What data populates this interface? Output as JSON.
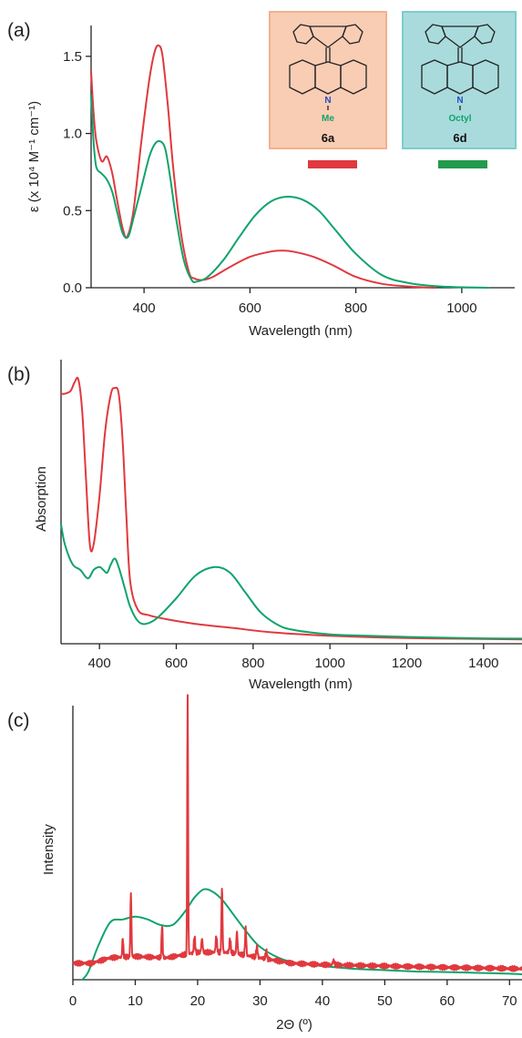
{
  "colors": {
    "red": "#e0393e",
    "green": "#0fa36b",
    "axis": "#222222",
    "box_a_fill": "#f8cdb4",
    "box_a_border": "#f4b08c",
    "box_d_fill": "#a9dbdc",
    "box_d_border": "#7ccccd",
    "bar_red": "#e0393e",
    "bar_green": "#239a4e"
  },
  "chart_data": [
    {
      "panel": "(a)",
      "type": "line",
      "xlabel": "Wavelength (nm)",
      "ylabel": "ε (x 10⁴ M⁻¹ cm⁻¹)",
      "xlim": [
        300,
        1100
      ],
      "ylim": [
        0,
        1.7
      ],
      "xticks": [
        400,
        600,
        800,
        1000
      ],
      "xtick_labels": [
        "400",
        "600",
        "800",
        "1000"
      ],
      "yticks": [
        0,
        0.5,
        1.0,
        1.5
      ],
      "ytick_labels": [
        "0.0",
        "0.5",
        "1.0",
        "1.5"
      ],
      "insets": [
        {
          "label": "6a",
          "substituent": "Me",
          "substituent_color": "#0fa36b",
          "n_label": "N",
          "bar_color": "red"
        },
        {
          "label": "6d",
          "substituent": "Octyl",
          "substituent_color": "#0fa36b",
          "n_label": "N",
          "bar_color": "green"
        }
      ],
      "series": [
        {
          "name": "6a",
          "color": "red",
          "x": [
            300,
            305,
            310,
            320,
            330,
            340,
            350,
            360,
            368,
            380,
            395,
            410,
            420,
            428,
            435,
            445,
            455,
            470,
            485,
            495,
            510,
            530,
            560,
            600,
            640,
            660,
            680,
            720,
            760,
            800,
            850,
            900,
            950
          ],
          "y": [
            1.4,
            1.12,
            0.95,
            0.82,
            0.85,
            0.74,
            0.55,
            0.38,
            0.33,
            0.5,
            0.95,
            1.35,
            1.53,
            1.57,
            1.5,
            1.18,
            0.78,
            0.35,
            0.1,
            0.06,
            0.05,
            0.07,
            0.13,
            0.2,
            0.235,
            0.24,
            0.235,
            0.2,
            0.14,
            0.07,
            0.025,
            0.008,
            0.0
          ]
        },
        {
          "name": "6d",
          "color": "green",
          "x": [
            300,
            305,
            310,
            320,
            330,
            340,
            350,
            360,
            370,
            380,
            395,
            410,
            420,
            430,
            440,
            450,
            460,
            475,
            490,
            500,
            520,
            550,
            580,
            610,
            640,
            670,
            700,
            730,
            760,
            800,
            850,
            900,
            950,
            1000,
            1050
          ],
          "y": [
            1.25,
            0.93,
            0.78,
            0.74,
            0.7,
            0.62,
            0.48,
            0.35,
            0.33,
            0.45,
            0.65,
            0.85,
            0.93,
            0.95,
            0.9,
            0.7,
            0.46,
            0.18,
            0.05,
            0.04,
            0.07,
            0.18,
            0.33,
            0.47,
            0.56,
            0.59,
            0.57,
            0.5,
            0.38,
            0.22,
            0.08,
            0.03,
            0.01,
            0.003,
            0.0
          ]
        }
      ]
    },
    {
      "panel": "(b)",
      "type": "line",
      "xlabel": "Wavelength (nm)",
      "ylabel": "Absorption",
      "xlim": [
        300,
        1500
      ],
      "ylim": [
        0,
        1.0
      ],
      "xticks": [
        400,
        600,
        800,
        1000,
        1200,
        1400
      ],
      "xtick_labels": [
        "400",
        "600",
        "800",
        "1000",
        "1200",
        "1400"
      ],
      "series": [
        {
          "name": "red",
          "color": "red",
          "x": [
            300,
            310,
            325,
            335,
            345,
            355,
            365,
            375,
            385,
            400,
            415,
            430,
            440,
            450,
            460,
            470,
            480,
            500,
            530,
            580,
            650,
            750,
            850,
            1000,
            1200,
            1400,
            1500
          ],
          "y": [
            0.88,
            0.88,
            0.89,
            0.92,
            0.93,
            0.82,
            0.58,
            0.35,
            0.35,
            0.52,
            0.75,
            0.88,
            0.9,
            0.88,
            0.72,
            0.45,
            0.22,
            0.12,
            0.1,
            0.085,
            0.07,
            0.055,
            0.04,
            0.028,
            0.02,
            0.017,
            0.015
          ]
        },
        {
          "name": "green",
          "color": "green",
          "x": [
            300,
            310,
            330,
            350,
            370,
            385,
            400,
            410,
            420,
            430,
            440,
            450,
            465,
            480,
            500,
            520,
            550,
            600,
            650,
            700,
            740,
            780,
            820,
            860,
            900,
            1000,
            1100,
            1200,
            1300,
            1400,
            1500
          ],
          "y": [
            0.42,
            0.35,
            0.28,
            0.26,
            0.23,
            0.26,
            0.27,
            0.26,
            0.25,
            0.28,
            0.3,
            0.27,
            0.2,
            0.13,
            0.08,
            0.07,
            0.09,
            0.16,
            0.24,
            0.27,
            0.25,
            0.18,
            0.11,
            0.07,
            0.05,
            0.033,
            0.028,
            0.024,
            0.021,
            0.019,
            0.018
          ]
        }
      ]
    },
    {
      "panel": "(c)",
      "type": "line",
      "xlabel": "2Θ (º)",
      "ylabel": "Intensity",
      "xlim": [
        0,
        72
      ],
      "ylim": [
        0,
        1.0
      ],
      "xticks": [
        0,
        10,
        20,
        30,
        40,
        50,
        60,
        70
      ],
      "xtick_labels": [
        "0",
        "10",
        "20",
        "30",
        "40",
        "50",
        "60",
        "70"
      ],
      "series": [
        {
          "name": "green",
          "color": "green",
          "x": [
            1.5,
            2.5,
            4,
            6,
            8,
            10,
            12,
            14,
            16,
            18,
            19.5,
            21,
            22.5,
            24,
            26,
            28,
            30,
            33,
            36,
            40,
            45,
            50,
            55,
            60,
            65,
            70,
            72
          ],
          "y": [
            0.0,
            0.03,
            0.12,
            0.21,
            0.22,
            0.23,
            0.22,
            0.2,
            0.2,
            0.25,
            0.3,
            0.33,
            0.32,
            0.29,
            0.23,
            0.17,
            0.12,
            0.08,
            0.06,
            0.05,
            0.04,
            0.035,
            0.03,
            0.028,
            0.025,
            0.022,
            0.02
          ]
        },
        {
          "name": "red",
          "color": "red",
          "baseline": {
            "x": [
              0,
              3,
              6,
              10,
              15,
              20,
              25,
              30,
              35,
              40,
              50,
              60,
              72
            ],
            "y": [
              0.06,
              0.06,
              0.08,
              0.085,
              0.08,
              0.1,
              0.1,
              0.08,
              0.06,
              0.055,
              0.05,
              0.045,
              0.04
            ]
          },
          "peaks": [
            {
              "x": 8.0,
              "h": 0.07,
              "w": 0.12
            },
            {
              "x": 9.3,
              "h": 0.23,
              "w": 0.12
            },
            {
              "x": 14.3,
              "h": 0.12,
              "w": 0.12
            },
            {
              "x": 18.4,
              "h": 0.94,
              "w": 0.1
            },
            {
              "x": 19.5,
              "h": 0.06,
              "w": 0.15
            },
            {
              "x": 20.7,
              "h": 0.05,
              "w": 0.15
            },
            {
              "x": 23.0,
              "h": 0.06,
              "w": 0.15
            },
            {
              "x": 23.9,
              "h": 0.24,
              "w": 0.12
            },
            {
              "x": 25.2,
              "h": 0.05,
              "w": 0.15
            },
            {
              "x": 26.3,
              "h": 0.08,
              "w": 0.13
            },
            {
              "x": 27.7,
              "h": 0.1,
              "w": 0.13
            },
            {
              "x": 29.5,
              "h": 0.04,
              "w": 0.15
            },
            {
              "x": 31.0,
              "h": 0.03,
              "w": 0.15
            },
            {
              "x": 41.8,
              "h": 0.015,
              "w": 0.2
            }
          ]
        }
      ]
    }
  ]
}
